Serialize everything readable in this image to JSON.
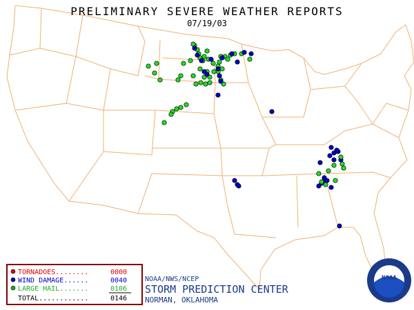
{
  "header": {
    "title": "PRELIMINARY SEVERE WEATHER REPORTS",
    "date": "07/19/03"
  },
  "legend": {
    "rows": [
      {
        "label": "TORNADOES........",
        "count": "0000"
      },
      {
        "label": "WIND DAMAGE......",
        "count": "0040"
      },
      {
        "label": "LARGE HAIL.......",
        "count": "0106"
      }
    ],
    "total": {
      "label": "TOTAL............",
      "count": "0146"
    }
  },
  "credits": {
    "agency": "NOAA/NWS/NCEP",
    "center": "STORM PREDICTION CENTER",
    "location": "NORMAN, OKLAHOMA",
    "logo": "NOAA"
  }
}
